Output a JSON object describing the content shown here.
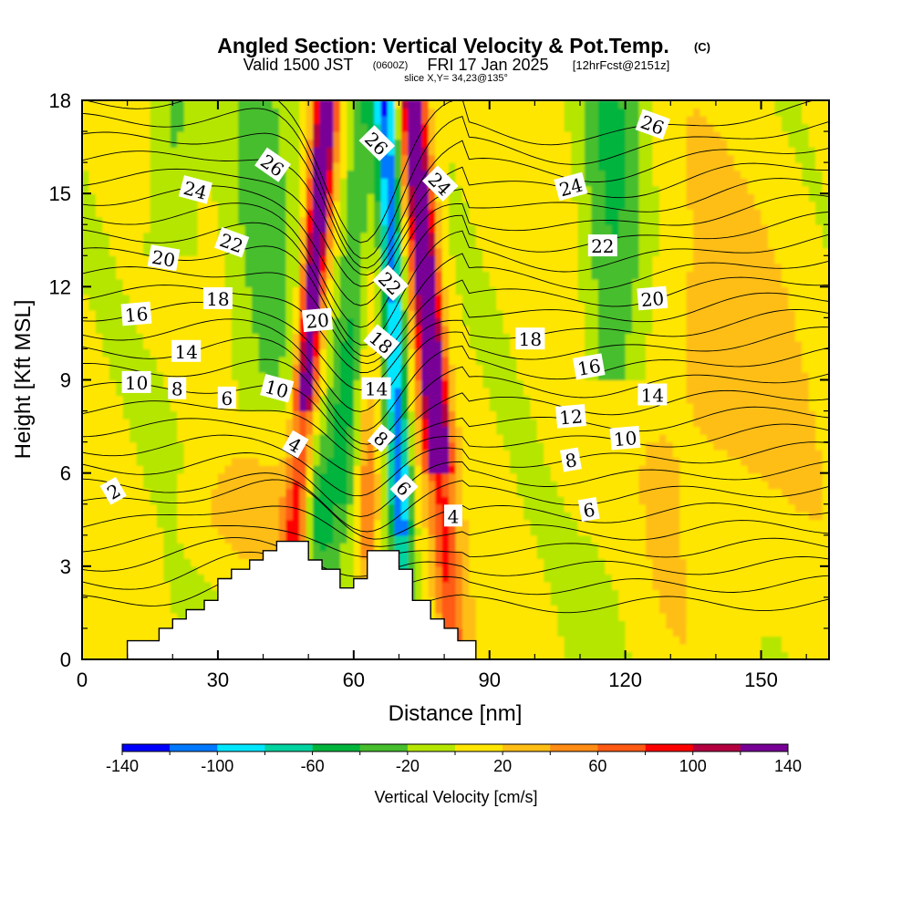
{
  "header": {
    "title_main": "Angled Section: Vertical Velocity & Pot.Temp.",
    "title_copyright": "(C)",
    "valid_prefix": "Valid 1500 JST",
    "valid_utc": "(0600Z)",
    "valid_date": "FRI 17 Jan 2025",
    "forecast": "[12hrFcst@2151z]",
    "slice": "slice X,Y= 34,23@135°"
  },
  "chart_data": {
    "type": "heatmap",
    "title": "Angled Section: Vertical Velocity & Pot.Temp.",
    "xlabel": "Distance [nm]",
    "ylabel": "Height [Kft MSL]",
    "xlim": [
      0,
      165
    ],
    "ylim": [
      0,
      18
    ],
    "x_ticks": [
      "0",
      "30",
      "60",
      "90",
      "120",
      "150"
    ],
    "y_ticks": [
      "0",
      "3",
      "6",
      "9",
      "12",
      "15",
      "18"
    ],
    "x_tick_values": [
      0,
      30,
      60,
      90,
      120,
      150
    ],
    "y_tick_values": [
      0,
      3,
      6,
      9,
      12,
      15,
      18
    ],
    "colorbar": {
      "label": "Vertical Velocity [cm/s]",
      "units": "cm/s",
      "tick_labels": [
        "-140",
        "-100",
        "-60",
        "-20",
        "20",
        "60",
        "100",
        "140"
      ],
      "tick_values": [
        -140,
        -100,
        -60,
        -20,
        20,
        60,
        100,
        140
      ],
      "bins": [
        -140,
        -120,
        -100,
        -80,
        -60,
        -40,
        -20,
        0,
        20,
        40,
        60,
        80,
        100,
        120,
        140
      ],
      "colors": [
        "#0000ff",
        "#0078ff",
        "#00e6ff",
        "#00d2a0",
        "#00b43c",
        "#46be2d",
        "#b4e600",
        "#ffe600",
        "#ffbe14",
        "#ff8c14",
        "#ff5a14",
        "#ff0000",
        "#b40040",
        "#780096"
      ]
    },
    "terrain": {
      "x_nm": [
        10,
        10,
        17,
        17,
        20,
        20,
        23,
        23,
        27,
        27,
        30,
        30,
        33,
        33,
        37,
        37,
        40,
        40,
        43,
        43,
        47,
        47,
        50,
        50,
        53,
        53,
        57,
        57,
        60,
        60,
        63,
        63,
        67,
        67,
        70,
        70,
        73,
        73,
        77,
        77,
        80,
        80,
        83,
        83,
        87,
        87
      ],
      "height_kft": [
        0.3,
        0.6,
        0.6,
        1.0,
        1.0,
        1.3,
        1.3,
        1.6,
        1.6,
        1.9,
        1.9,
        2.6,
        2.6,
        2.9,
        2.9,
        3.2,
        3.2,
        3.5,
        3.5,
        3.8,
        3.8,
        3.8,
        3.8,
        3.2,
        3.2,
        2.9,
        2.9,
        2.3,
        2.3,
        2.6,
        2.6,
        3.5,
        3.5,
        3.5,
        3.5,
        2.9,
        2.9,
        1.9,
        1.9,
        1.3,
        1.3,
        1.0,
        1.0,
        0.6,
        0.6,
        0.3
      ]
    },
    "contour_labels": [
      {
        "value": "2",
        "x": 7,
        "y": 5.4,
        "angle": -30
      },
      {
        "value": "4",
        "x": 47,
        "y": 6.9,
        "angle": 30
      },
      {
        "value": "4",
        "x": 82,
        "y": 4.6,
        "angle": 0
      },
      {
        "value": "6",
        "x": 32,
        "y": 8.4,
        "angle": 0
      },
      {
        "value": "6",
        "x": 71,
        "y": 5.5,
        "angle": 45
      },
      {
        "value": "6",
        "x": 112,
        "y": 4.8,
        "angle": -10
      },
      {
        "value": "8",
        "x": 21,
        "y": 8.7,
        "angle": 0
      },
      {
        "value": "8",
        "x": 66,
        "y": 7.1,
        "angle": 40
      },
      {
        "value": "8",
        "x": 108,
        "y": 6.4,
        "angle": -10
      },
      {
        "value": "10",
        "x": 12,
        "y": 8.9,
        "angle": 0
      },
      {
        "value": "10",
        "x": 43,
        "y": 8.7,
        "angle": 15
      },
      {
        "value": "10",
        "x": 120,
        "y": 7.1,
        "angle": -5
      },
      {
        "value": "12",
        "x": 108,
        "y": 7.8,
        "angle": -5
      },
      {
        "value": "14",
        "x": 23,
        "y": 9.9,
        "angle": 0
      },
      {
        "value": "14",
        "x": 65,
        "y": 8.7,
        "angle": 0
      },
      {
        "value": "14",
        "x": 126,
        "y": 8.5,
        "angle": 0
      },
      {
        "value": "16",
        "x": 12,
        "y": 11.1,
        "angle": -5
      },
      {
        "value": "16",
        "x": 112,
        "y": 9.4,
        "angle": -10
      },
      {
        "value": "18",
        "x": 30,
        "y": 11.6,
        "angle": 0
      },
      {
        "value": "18",
        "x": 66,
        "y": 10.2,
        "angle": 40
      },
      {
        "value": "18",
        "x": 99,
        "y": 10.3,
        "angle": 0
      },
      {
        "value": "20",
        "x": 18,
        "y": 12.9,
        "angle": 10
      },
      {
        "value": "20",
        "x": 52,
        "y": 10.9,
        "angle": -5
      },
      {
        "value": "20",
        "x": 126,
        "y": 11.6,
        "angle": -5
      },
      {
        "value": "22",
        "x": 33,
        "y": 13.4,
        "angle": 20
      },
      {
        "value": "22",
        "x": 68,
        "y": 12.1,
        "angle": 45
      },
      {
        "value": "22",
        "x": 115,
        "y": 13.3,
        "angle": 0
      },
      {
        "value": "24",
        "x": 25,
        "y": 15.1,
        "angle": 15
      },
      {
        "value": "24",
        "x": 79,
        "y": 15.3,
        "angle": 45
      },
      {
        "value": "24",
        "x": 108,
        "y": 15.2,
        "angle": -15
      },
      {
        "value": "26",
        "x": 42,
        "y": 15.9,
        "angle": 35
      },
      {
        "value": "26",
        "x": 65,
        "y": 16.6,
        "angle": 45
      },
      {
        "value": "26",
        "x": 126,
        "y": 17.2,
        "angle": 20
      }
    ]
  }
}
